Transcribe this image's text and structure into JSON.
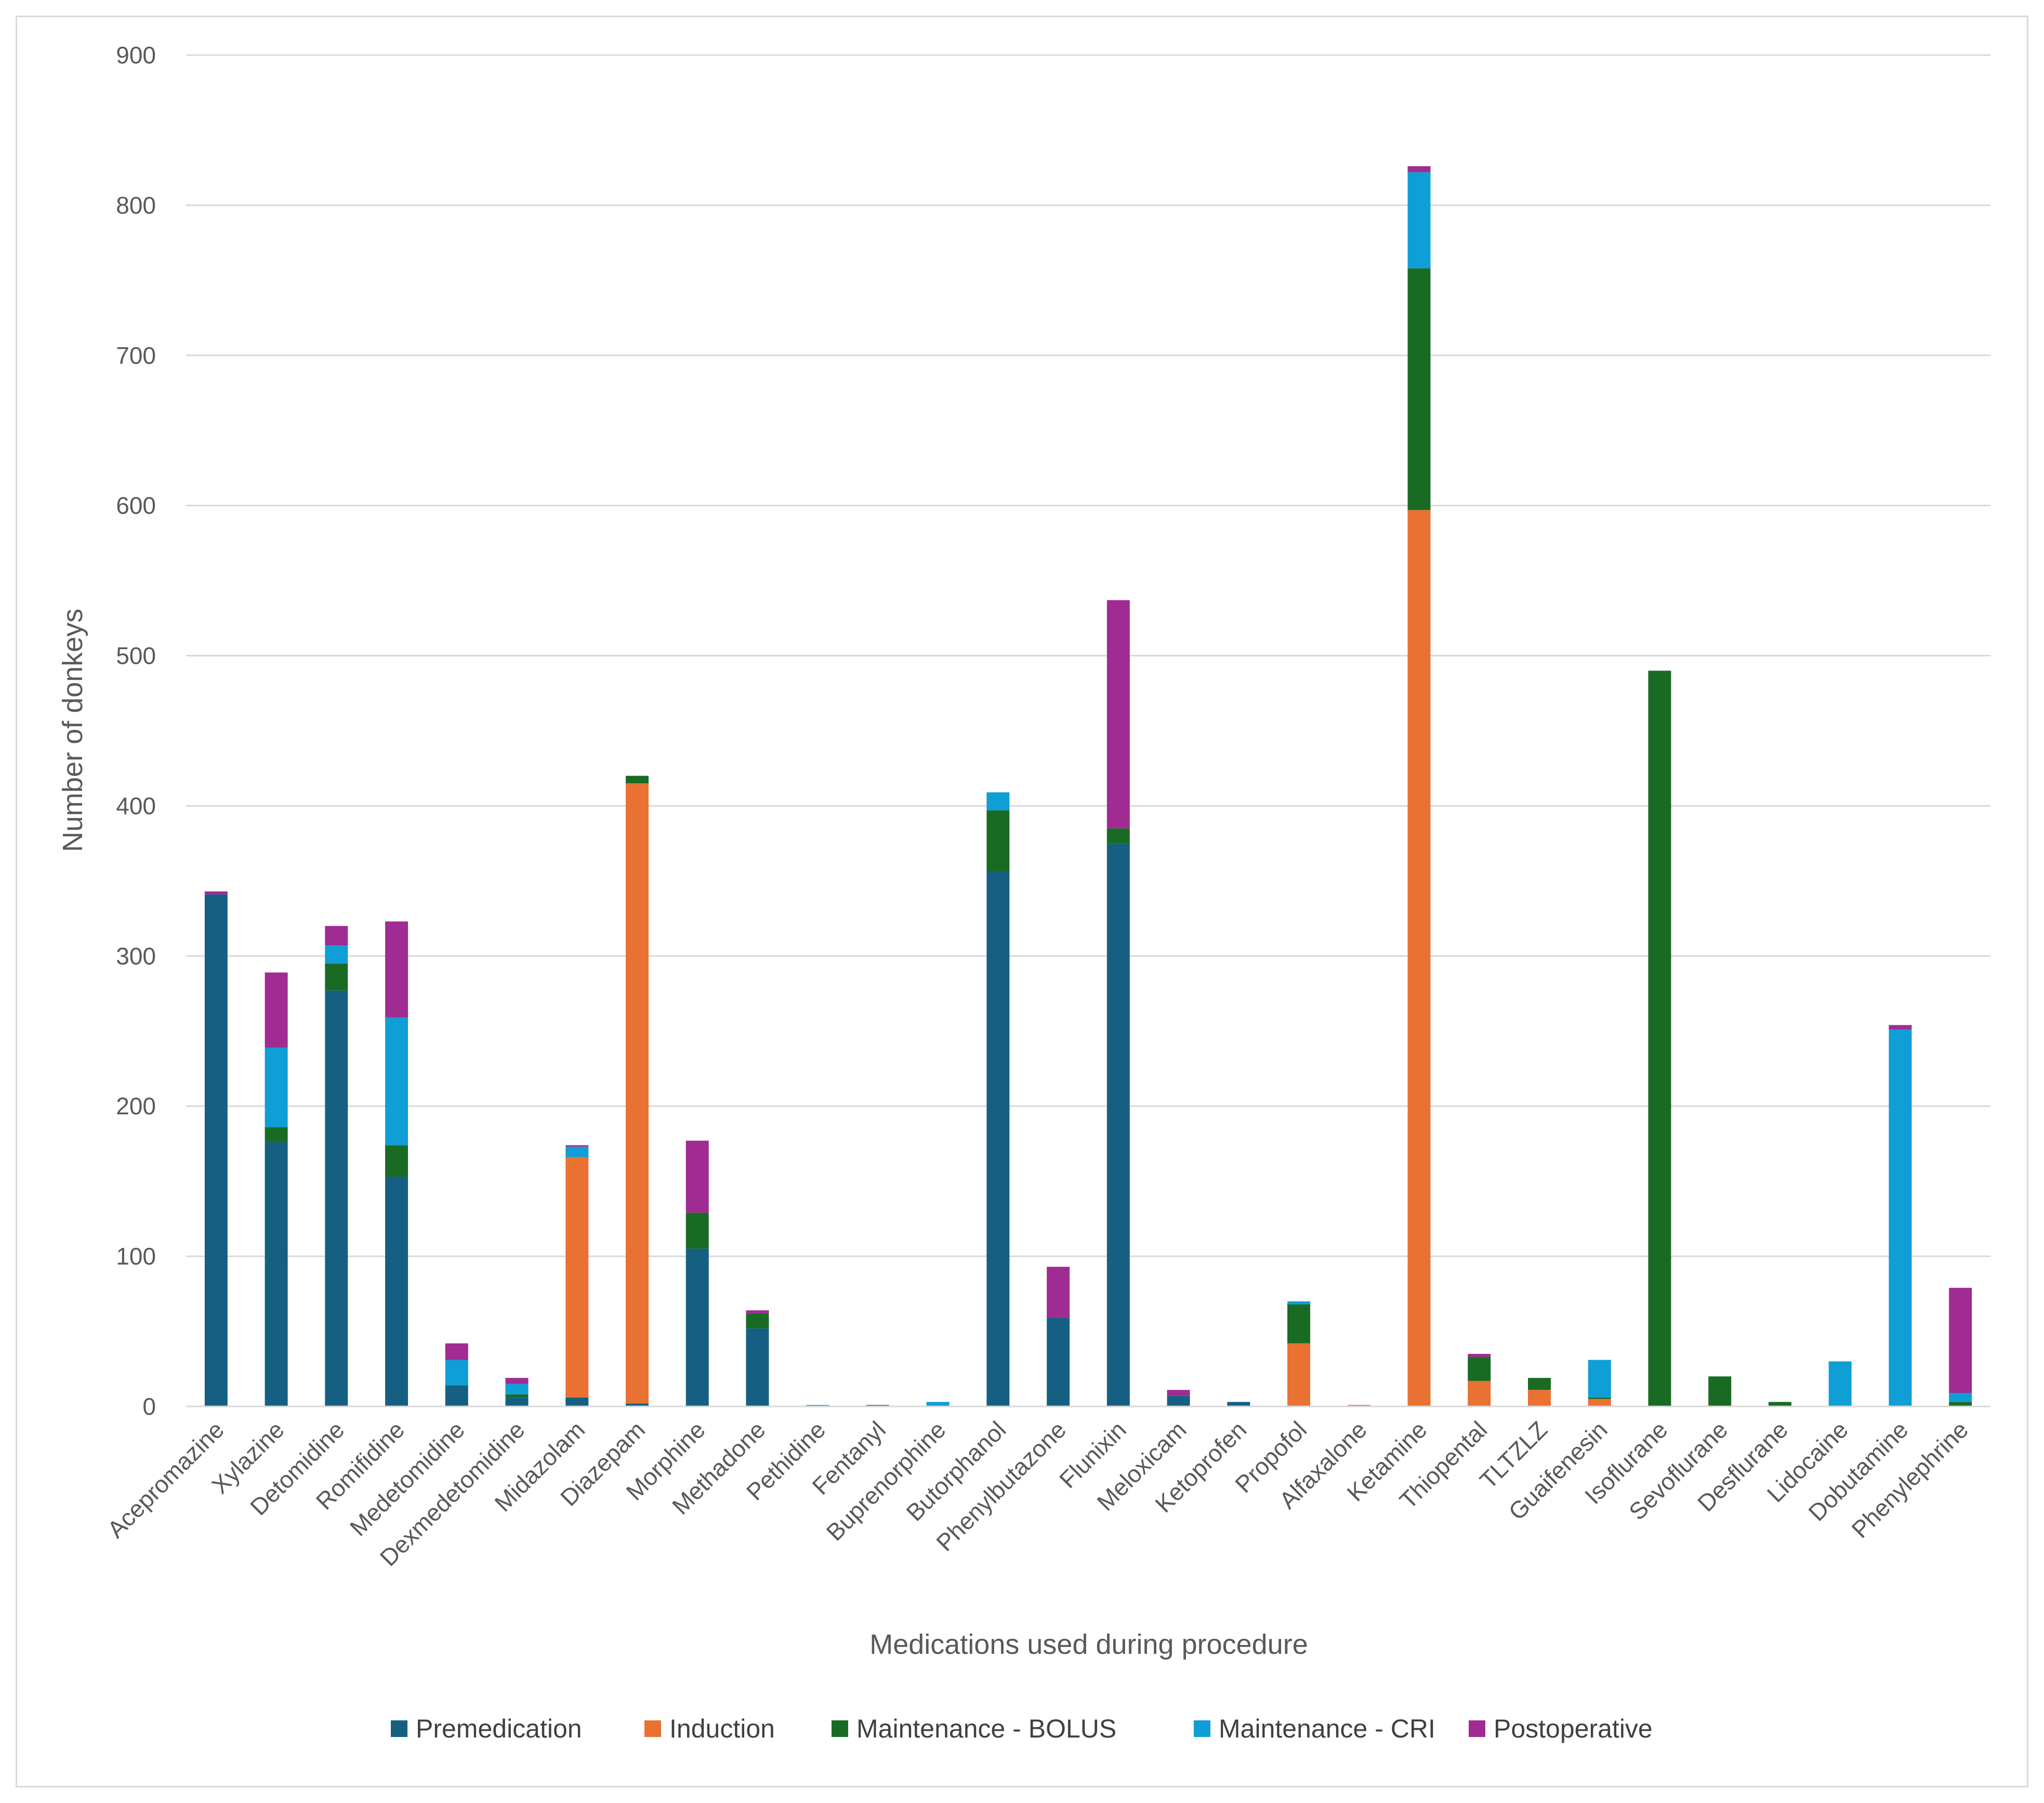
{
  "chart_data": {
    "type": "bar",
    "stacked": true,
    "title": "",
    "xlabel": "Medications used during procedure",
    "ylabel": "Number of donkeys",
    "ylim": [
      0,
      900
    ],
    "yticks": [
      0,
      100,
      200,
      300,
      400,
      500,
      600,
      700,
      800,
      900
    ],
    "grid": true,
    "legend_position": "bottom",
    "categories": [
      "Acepromazine",
      "Xylazine",
      "Detomidine",
      "Romifidine",
      "Medetomidine",
      "Dexmedetomidine",
      "Midazolam",
      "Diazepam",
      "Morphine",
      "Methadone",
      "Pethidine",
      "Fentanyl",
      "Buprenorphine",
      "Butorphanol",
      "Phenylbutazone",
      "Flunixin",
      "Meloxicam",
      "Ketoprofen",
      "Propofol",
      "Alfaxalone",
      "Ketamine",
      "Thiopental",
      "TLTZLZ",
      "Guaifenesin",
      "Isoflurane",
      "Sevoflurane",
      "Desflurane",
      "Lidocaine",
      "Dobutamine",
      "Phenylephrine"
    ],
    "series": [
      {
        "name": "Premedication",
        "color": "#156082",
        "values": [
          341,
          176,
          277,
          153,
          14,
          6,
          6,
          2,
          105,
          52,
          0,
          0,
          0,
          356,
          59,
          375,
          7,
          3,
          0,
          0,
          0,
          0,
          0,
          0,
          0,
          0,
          0,
          0,
          0,
          0
        ]
      },
      {
        "name": "Induction",
        "color": "#e97132",
        "values": [
          0,
          0,
          0,
          0,
          0,
          0,
          160,
          413,
          0,
          0,
          0,
          0,
          0,
          0,
          0,
          0,
          0,
          0,
          42,
          1,
          597,
          17,
          11,
          5,
          0,
          0,
          0,
          0,
          0,
          0
        ]
      },
      {
        "name": "Maintenance - BOLUS",
        "color": "#196b24",
        "values": [
          0,
          10,
          18,
          21,
          0,
          2,
          0,
          5,
          24,
          10,
          0,
          0,
          0,
          41,
          0,
          10,
          0,
          0,
          26,
          0,
          161,
          16,
          8,
          1,
          490,
          20,
          3,
          0,
          0,
          3
        ]
      },
      {
        "name": "Maintenance - CRI",
        "color": "#0f9ed5",
        "values": [
          0,
          53,
          12,
          85,
          17,
          7,
          7,
          0,
          0,
          0,
          1,
          0,
          3,
          12,
          0,
          0,
          0,
          0,
          2,
          0,
          64,
          0,
          0,
          25,
          0,
          0,
          0,
          30,
          251,
          6
        ]
      },
      {
        "name": "Postoperative",
        "color": "#a02b93",
        "values": [
          2,
          50,
          13,
          64,
          11,
          4,
          1,
          0,
          48,
          2,
          0,
          1,
          0,
          0,
          34,
          152,
          4,
          0,
          0,
          0,
          4,
          2,
          0,
          0,
          0,
          0,
          0,
          0,
          3,
          70
        ]
      }
    ]
  }
}
